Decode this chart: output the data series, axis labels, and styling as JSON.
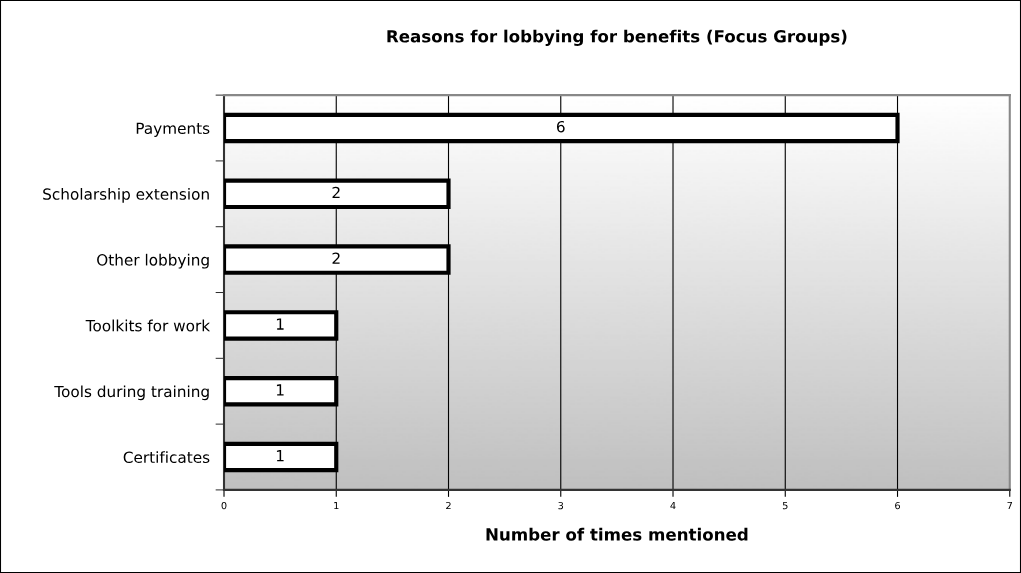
{
  "chart_data": {
    "type": "bar",
    "orientation": "horizontal",
    "title": "Reasons for lobbying for benefits (Focus Groups)",
    "xlabel": "Number of times mentioned",
    "categories": [
      "Payments",
      "Scholarship extension",
      "Other lobbying",
      "Toolkits for work",
      "Tools during training",
      "Certificates"
    ],
    "values": [
      6,
      2,
      2,
      1,
      1,
      1
    ],
    "color": "#ffffff",
    "xlim": [
      0,
      7
    ],
    "xticks": [
      0,
      1,
      2,
      3,
      4,
      5,
      6,
      7
    ],
    "grid": "x",
    "data_labels": true,
    "legend": false
  }
}
